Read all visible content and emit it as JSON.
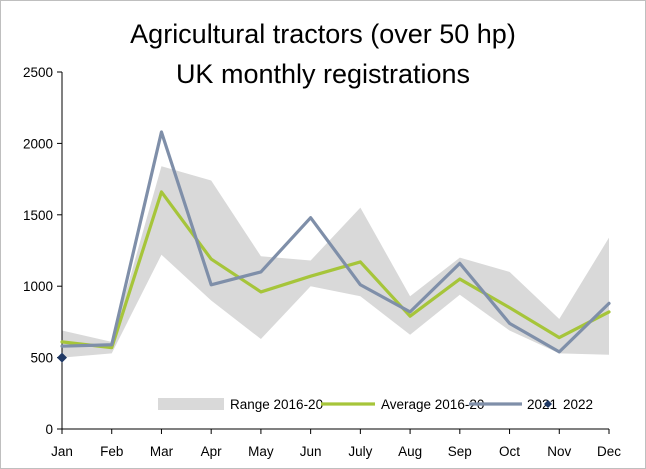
{
  "chart_data": {
    "type": "line",
    "title": "Agricultural tractors (over 50 hp)",
    "subtitle": "UK monthly registrations",
    "xlabel": "",
    "ylabel": "",
    "categories": [
      "Jan",
      "Feb",
      "Mar",
      "Apr",
      "May",
      "Jun",
      "July",
      "Aug",
      "Sep",
      "Oct",
      "Nov",
      "Dec"
    ],
    "ylim": [
      0,
      2500
    ],
    "yticks": [
      "0",
      "500",
      "1000",
      "1500",
      "2000",
      "2500"
    ],
    "grid": false,
    "legend_position": "bottom",
    "range": {
      "name": "Range 2016-20",
      "low": [
        500,
        530,
        1220,
        900,
        630,
        1000,
        930,
        660,
        940,
        690,
        530,
        520
      ],
      "high": [
        690,
        610,
        1840,
        1740,
        1210,
        1180,
        1550,
        930,
        1200,
        1100,
        770,
        1340
      ],
      "color": "#d9d9d9"
    },
    "series": [
      {
        "name": "Average 2016-20",
        "values": [
          610,
          570,
          1660,
          1190,
          960,
          1070,
          1170,
          790,
          1050,
          850,
          640,
          820
        ],
        "color": "#a6c53a",
        "style": "line"
      },
      {
        "name": "2021",
        "values": [
          580,
          590,
          2080,
          1010,
          1100,
          1480,
          1010,
          820,
          1160,
          740,
          540,
          880
        ],
        "color": "#7f8fa9",
        "style": "line"
      },
      {
        "name": "2022",
        "values": [
          500,
          null,
          null,
          null,
          null,
          null,
          null,
          null,
          null,
          null,
          null,
          null
        ],
        "color": "#1f3864",
        "style": "marker-diamond"
      }
    ]
  }
}
